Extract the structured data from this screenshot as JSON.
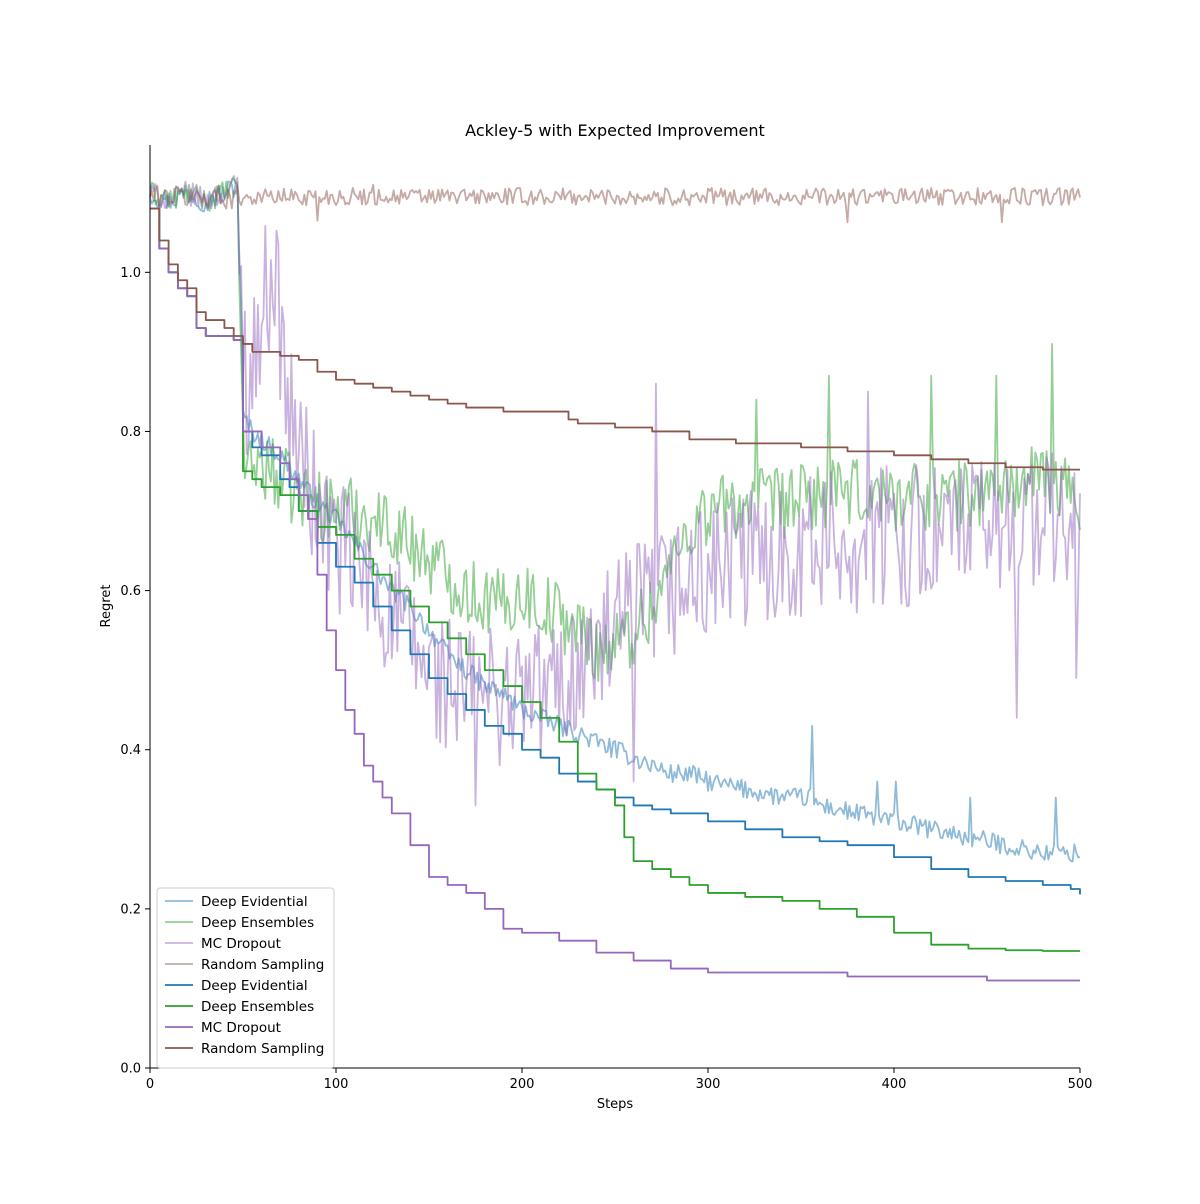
{
  "chart_data": {
    "type": "line",
    "title": "Ackley-5 with Expected Improvement",
    "xlabel": "Steps",
    "ylabel": "Regret",
    "xlim": [
      0,
      500
    ],
    "ylim": [
      0,
      1.16
    ],
    "xticks": [
      0,
      100,
      200,
      300,
      400,
      500
    ],
    "xtick_labels": [
      "0",
      "100",
      "200",
      "300",
      "400",
      "500"
    ],
    "yticks": [
      0.0,
      0.2,
      0.4,
      0.6,
      0.8,
      1.0
    ],
    "ytick_labels": [
      "0.0",
      "0.2",
      "0.4",
      "0.6",
      "0.8",
      "1.0"
    ],
    "grid": false,
    "legend_position": "bottom-left",
    "series": [
      {
        "name": "Deep Evidential",
        "kind": "noisy",
        "color": "#1f77b4",
        "opacity": 0.5,
        "x": [
          0,
          10,
          20,
          30,
          40,
          47,
          49,
          50,
          55,
          60,
          70,
          80,
          90,
          100,
          110,
          120,
          130,
          140,
          150,
          160,
          170,
          180,
          190,
          200,
          210,
          220,
          230,
          240,
          250,
          260,
          270,
          280,
          290,
          300,
          320,
          340,
          356,
          360,
          380,
          400,
          420,
          440,
          460,
          480,
          500
        ],
        "y": [
          1.1,
          1.09,
          1.1,
          1.09,
          1.1,
          1.11,
          0.95,
          0.82,
          0.8,
          0.79,
          0.77,
          0.74,
          0.71,
          0.69,
          0.66,
          0.63,
          0.6,
          0.58,
          0.55,
          0.52,
          0.5,
          0.48,
          0.47,
          0.45,
          0.44,
          0.43,
          0.42,
          0.41,
          0.4,
          0.39,
          0.38,
          0.37,
          0.37,
          0.36,
          0.35,
          0.34,
          0.34,
          0.33,
          0.32,
          0.31,
          0.3,
          0.29,
          0.28,
          0.27,
          0.27
        ],
        "noise": 0.012,
        "spikes": [
          [
            356,
            0.43
          ],
          [
            391,
            0.36
          ],
          [
            401,
            0.36
          ],
          [
            441,
            0.34
          ],
          [
            487,
            0.34
          ]
        ]
      },
      {
        "name": "Deep Ensembles",
        "kind": "noisy",
        "color": "#2ca02c",
        "opacity": 0.5,
        "x": [
          0,
          10,
          20,
          30,
          40,
          47,
          49,
          50,
          55,
          60,
          70,
          80,
          90,
          100,
          110,
          120,
          130,
          140,
          150,
          160,
          170,
          180,
          190,
          200,
          210,
          220,
          230,
          240,
          250,
          260,
          270,
          280,
          290,
          300,
          320,
          340,
          360,
          380,
          400,
          420,
          440,
          460,
          480,
          500
        ],
        "y": [
          1.1,
          1.09,
          1.1,
          1.09,
          1.1,
          1.11,
          0.92,
          0.77,
          0.76,
          0.76,
          0.74,
          0.72,
          0.71,
          0.7,
          0.7,
          0.69,
          0.68,
          0.66,
          0.64,
          0.62,
          0.6,
          0.59,
          0.58,
          0.6,
          0.58,
          0.57,
          0.55,
          0.53,
          0.53,
          0.55,
          0.58,
          0.63,
          0.68,
          0.7,
          0.71,
          0.71,
          0.72,
          0.72,
          0.72,
          0.72,
          0.72,
          0.73,
          0.74,
          0.72
        ],
        "noise": 0.045,
        "spikes": [
          [
            485,
            0.91
          ],
          [
            365,
            0.87
          ],
          [
            420,
            0.87
          ],
          [
            455,
            0.87
          ],
          [
            326,
            0.84
          ]
        ]
      },
      {
        "name": "MC Dropout",
        "kind": "noisy",
        "color": "#9467bd",
        "opacity": 0.5,
        "x": [
          0,
          10,
          20,
          30,
          40,
          47,
          50,
          52,
          55,
          58,
          62,
          65,
          66,
          68,
          72,
          75,
          80,
          85,
          90,
          100,
          110,
          120,
          130,
          140,
          150,
          160,
          170,
          180,
          190,
          200,
          220,
          240,
          260,
          280,
          300,
          320,
          340,
          360,
          380,
          400,
          420,
          440,
          460,
          480,
          500
        ],
        "y": [
          1.1,
          1.09,
          1.1,
          1.09,
          1.1,
          1.11,
          0.92,
          0.86,
          0.88,
          0.92,
          0.97,
          1.0,
          1.02,
          0.98,
          0.88,
          0.82,
          0.78,
          0.74,
          0.7,
          0.66,
          0.63,
          0.6,
          0.57,
          0.53,
          0.5,
          0.48,
          0.47,
          0.47,
          0.47,
          0.47,
          0.48,
          0.52,
          0.57,
          0.6,
          0.62,
          0.64,
          0.65,
          0.66,
          0.66,
          0.67,
          0.67,
          0.68,
          0.68,
          0.69,
          0.68
        ],
        "noise": 0.09,
        "spikes": [
          [
            272,
            0.86
          ],
          [
            386,
            0.85
          ],
          [
            466,
            0.44
          ],
          [
            498,
            0.49
          ],
          [
            175,
            0.33
          ],
          [
            260,
            0.36
          ]
        ]
      },
      {
        "name": "Random Sampling",
        "kind": "noisy",
        "color": "#8c564b",
        "opacity": 0.5,
        "x": [
          0,
          500
        ],
        "y": [
          1.095,
          1.095
        ],
        "noise": 0.011,
        "spikes": [
          [
            90,
            1.065
          ],
          [
            375,
            1.063
          ],
          [
            458,
            1.063
          ],
          [
            120,
            1.11
          ]
        ]
      },
      {
        "name": "Deep Evidential",
        "kind": "step",
        "color": "#1f77b4",
        "opacity": 1,
        "x": [
          0,
          5,
          10,
          15,
          20,
          25,
          30,
          40,
          45,
          48,
          50,
          55,
          60,
          70,
          75,
          80,
          90,
          100,
          110,
          120,
          130,
          140,
          150,
          160,
          170,
          180,
          190,
          200,
          210,
          220,
          230,
          240,
          250,
          260,
          270,
          280,
          300,
          320,
          340,
          360,
          375,
          400,
          420,
          440,
          460,
          480,
          495,
          500
        ],
        "y": [
          1.08,
          1.03,
          1.0,
          0.98,
          0.97,
          0.93,
          0.92,
          0.92,
          0.915,
          0.915,
          0.8,
          0.78,
          0.77,
          0.74,
          0.73,
          0.7,
          0.66,
          0.63,
          0.61,
          0.58,
          0.55,
          0.52,
          0.49,
          0.47,
          0.45,
          0.43,
          0.42,
          0.4,
          0.39,
          0.37,
          0.36,
          0.35,
          0.34,
          0.33,
          0.325,
          0.32,
          0.31,
          0.3,
          0.29,
          0.285,
          0.28,
          0.265,
          0.25,
          0.24,
          0.235,
          0.23,
          0.225,
          0.218
        ]
      },
      {
        "name": "Deep Ensembles",
        "kind": "step",
        "color": "#2ca02c",
        "opacity": 1,
        "x": [
          0,
          5,
          10,
          15,
          20,
          25,
          30,
          40,
          45,
          48,
          50,
          55,
          60,
          70,
          80,
          90,
          100,
          110,
          120,
          130,
          140,
          150,
          160,
          170,
          180,
          190,
          200,
          210,
          220,
          230,
          240,
          250,
          255,
          260,
          270,
          280,
          290,
          300,
          320,
          340,
          360,
          380,
          400,
          420,
          440,
          460,
          480,
          500
        ],
        "y": [
          1.08,
          1.03,
          1.0,
          0.98,
          0.97,
          0.93,
          0.92,
          0.92,
          0.915,
          0.915,
          0.75,
          0.74,
          0.73,
          0.72,
          0.7,
          0.68,
          0.67,
          0.64,
          0.62,
          0.6,
          0.58,
          0.56,
          0.54,
          0.52,
          0.5,
          0.48,
          0.46,
          0.44,
          0.41,
          0.37,
          0.35,
          0.33,
          0.29,
          0.26,
          0.25,
          0.24,
          0.23,
          0.22,
          0.215,
          0.21,
          0.2,
          0.19,
          0.17,
          0.155,
          0.15,
          0.148,
          0.147,
          0.147
        ]
      },
      {
        "name": "MC Dropout",
        "kind": "step",
        "color": "#9467bd",
        "opacity": 1,
        "x": [
          0,
          5,
          10,
          15,
          20,
          25,
          30,
          40,
          45,
          48,
          50,
          60,
          70,
          75,
          80,
          85,
          90,
          95,
          100,
          105,
          110,
          115,
          120,
          125,
          130,
          140,
          150,
          160,
          170,
          180,
          190,
          200,
          220,
          240,
          260,
          280,
          300,
          340,
          375,
          400,
          420,
          440,
          450,
          470,
          500
        ],
        "y": [
          1.08,
          1.03,
          1.0,
          0.98,
          0.97,
          0.93,
          0.92,
          0.92,
          0.915,
          0.915,
          0.8,
          0.78,
          0.76,
          0.74,
          0.72,
          0.69,
          0.62,
          0.55,
          0.5,
          0.45,
          0.42,
          0.38,
          0.36,
          0.34,
          0.32,
          0.28,
          0.24,
          0.23,
          0.22,
          0.2,
          0.175,
          0.17,
          0.16,
          0.145,
          0.135,
          0.125,
          0.12,
          0.12,
          0.115,
          0.115,
          0.115,
          0.115,
          0.11,
          0.11,
          0.11
        ]
      },
      {
        "name": "Random Sampling",
        "kind": "step",
        "color": "#8c564b",
        "opacity": 1,
        "x": [
          0,
          5,
          10,
          15,
          20,
          25,
          30,
          40,
          45,
          50,
          55,
          60,
          70,
          80,
          90,
          100,
          110,
          120,
          130,
          140,
          150,
          160,
          170,
          180,
          190,
          200,
          225,
          230,
          250,
          270,
          290,
          300,
          315,
          330,
          350,
          375,
          400,
          420,
          440,
          450,
          460,
          480,
          500
        ],
        "y": [
          1.08,
          1.04,
          1.01,
          0.99,
          0.98,
          0.95,
          0.94,
          0.93,
          0.92,
          0.91,
          0.9,
          0.9,
          0.895,
          0.89,
          0.875,
          0.865,
          0.86,
          0.855,
          0.85,
          0.845,
          0.84,
          0.835,
          0.83,
          0.83,
          0.825,
          0.825,
          0.815,
          0.81,
          0.805,
          0.8,
          0.79,
          0.79,
          0.785,
          0.785,
          0.78,
          0.775,
          0.77,
          0.765,
          0.76,
          0.76,
          0.755,
          0.752,
          0.752
        ]
      }
    ]
  }
}
